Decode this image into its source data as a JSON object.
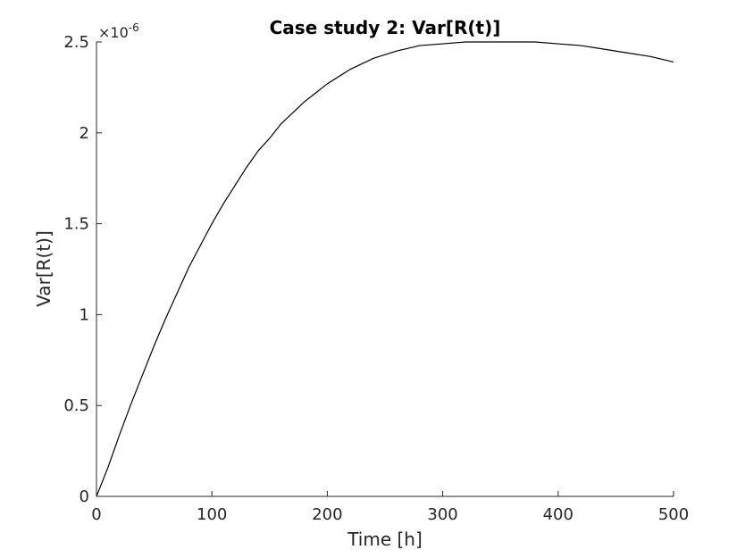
{
  "chart_data": {
    "type": "line",
    "title": "Case study 2: Var[R(t)]",
    "xlabel": "Time [h]",
    "ylabel": "Var[R(t)]",
    "y_exponent_base": "×10",
    "y_exponent_power": "-6",
    "xlim": [
      0,
      500
    ],
    "ylim": [
      0,
      2.5
    ],
    "x_ticks": [
      0,
      100,
      200,
      300,
      400,
      500
    ],
    "x_tick_labels": [
      "0",
      "100",
      "200",
      "300",
      "400",
      "500"
    ],
    "y_ticks": [
      0,
      0.5,
      1,
      1.5,
      2,
      2.5
    ],
    "y_tick_labels": [
      "0",
      "0.5",
      "1",
      "1.5",
      "2",
      "2.5"
    ],
    "grid": false,
    "series": [
      {
        "color": "#000000",
        "x": [
          0,
          10,
          20,
          30,
          40,
          50,
          60,
          70,
          80,
          90,
          100,
          110,
          120,
          130,
          140,
          150,
          160,
          170,
          180,
          190,
          200,
          220,
          240,
          260,
          280,
          300,
          320,
          340,
          360,
          380,
          400,
          420,
          440,
          460,
          480,
          500
        ],
        "values": [
          0,
          0.16,
          0.34,
          0.51,
          0.67,
          0.83,
          0.98,
          1.12,
          1.26,
          1.38,
          1.5,
          1.61,
          1.71,
          1.81,
          1.9,
          1.97,
          2.05,
          2.11,
          2.17,
          2.22,
          2.27,
          2.35,
          2.41,
          2.45,
          2.48,
          2.49,
          2.5,
          2.5,
          2.5,
          2.5,
          2.49,
          2.48,
          2.46,
          2.44,
          2.42,
          2.39
        ]
      }
    ]
  }
}
